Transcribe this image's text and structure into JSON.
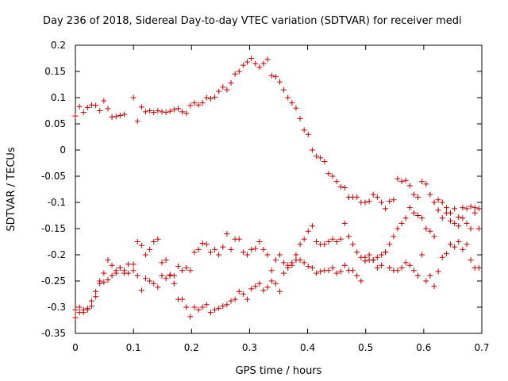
{
  "chart_data": {
    "type": "scatter",
    "title": "Day 236 of 2018, Sidereal Day-to-day VTEC variation (SDTVAR) for receiver medi",
    "xlabel": "GPS time / hours",
    "ylabel": "SDTVAR / TECUs",
    "xlim": [
      0,
      0.7
    ],
    "ylim": [
      -0.35,
      0.2
    ],
    "xticks": [
      "0",
      "0.1",
      "0.2",
      "0.3",
      "0.4",
      "0.5",
      "0.6",
      "0.7"
    ],
    "yticks": [
      "0.2",
      "0.15",
      "0.1",
      "0.05",
      "0",
      "-0.05",
      "-0.1",
      "-0.15",
      "-0.2",
      "-0.25",
      "-0.3",
      "-0.35"
    ],
    "xtick_values": [
      0,
      0.1,
      0.2,
      0.3,
      0.4,
      0.5,
      0.6,
      0.7
    ],
    "ytick_values": [
      0.2,
      0.15,
      0.1,
      0.05,
      0,
      -0.05,
      -0.1,
      -0.15,
      -0.2,
      -0.25,
      -0.3,
      -0.35
    ],
    "marker": "+",
    "color": "#c00000",
    "series": [
      {
        "name": "series-1",
        "points": [
          [
            0.0,
            0.065
          ],
          [
            0.007,
            0.083
          ],
          [
            0.014,
            0.072
          ],
          [
            0.021,
            0.081
          ],
          [
            0.028,
            0.086
          ],
          [
            0.035,
            0.085
          ],
          [
            0.042,
            0.075
          ],
          [
            0.049,
            0.094
          ],
          [
            0.056,
            0.079
          ],
          [
            0.063,
            0.063
          ],
          [
            0.07,
            0.064
          ],
          [
            0.077,
            0.066
          ],
          [
            0.084,
            0.068
          ],
          [
            0.1,
            0.1
          ],
          [
            0.107,
            0.055
          ],
          [
            0.114,
            0.082
          ],
          [
            0.121,
            0.073
          ],
          [
            0.128,
            0.075
          ],
          [
            0.135,
            0.072
          ],
          [
            0.142,
            0.075
          ],
          [
            0.149,
            0.073
          ],
          [
            0.156,
            0.072
          ],
          [
            0.163,
            0.074
          ],
          [
            0.17,
            0.077
          ],
          [
            0.177,
            0.079
          ],
          [
            0.184,
            0.073
          ],
          [
            0.191,
            0.07
          ],
          [
            0.198,
            0.085
          ],
          [
            0.205,
            0.09
          ],
          [
            0.212,
            0.086
          ],
          [
            0.219,
            0.09
          ],
          [
            0.226,
            0.1
          ],
          [
            0.233,
            0.098
          ],
          [
            0.24,
            0.101
          ],
          [
            0.247,
            0.112
          ],
          [
            0.254,
            0.12
          ],
          [
            0.261,
            0.115
          ],
          [
            0.268,
            0.128
          ],
          [
            0.275,
            0.145
          ],
          [
            0.282,
            0.15
          ],
          [
            0.289,
            0.162
          ],
          [
            0.296,
            0.168
          ],
          [
            0.303,
            0.175
          ],
          [
            0.31,
            0.165
          ],
          [
            0.317,
            0.158
          ],
          [
            0.324,
            0.165
          ],
          [
            0.331,
            0.173
          ],
          [
            0.338,
            0.142
          ],
          [
            0.345,
            0.14
          ],
          [
            0.352,
            0.13
          ],
          [
            0.359,
            0.115
          ],
          [
            0.366,
            0.1
          ],
          [
            0.373,
            0.09
          ],
          [
            0.38,
            0.08
          ],
          [
            0.387,
            0.06
          ],
          [
            0.394,
            0.038
          ],
          [
            0.401,
            0.03
          ],
          [
            0.408,
            0.0
          ],
          [
            0.415,
            -0.012
          ],
          [
            0.422,
            -0.015
          ],
          [
            0.429,
            -0.022
          ],
          [
            0.436,
            -0.045
          ],
          [
            0.443,
            -0.05
          ],
          [
            0.45,
            -0.06
          ],
          [
            0.457,
            -0.07
          ],
          [
            0.464,
            -0.072
          ],
          [
            0.471,
            -0.09
          ],
          [
            0.478,
            -0.09
          ],
          [
            0.485,
            -0.09
          ],
          [
            0.492,
            -0.1
          ],
          [
            0.499,
            -0.1
          ],
          [
            0.506,
            -0.098
          ],
          [
            0.513,
            -0.085
          ],
          [
            0.52,
            -0.09
          ],
          [
            0.527,
            -0.1
          ],
          [
            0.534,
            -0.112
          ],
          [
            0.541,
            -0.098
          ],
          [
            0.548,
            -0.095
          ],
          [
            0.555,
            -0.055
          ],
          [
            0.562,
            -0.06
          ],
          [
            0.569,
            -0.058
          ],
          [
            0.576,
            -0.068
          ],
          [
            0.583,
            -0.085
          ],
          [
            0.59,
            -0.09
          ],
          [
            0.597,
            -0.06
          ],
          [
            0.604,
            -0.065
          ],
          [
            0.611,
            -0.085
          ],
          [
            0.618,
            -0.1
          ],
          [
            0.625,
            -0.095
          ],
          [
            0.632,
            -0.1
          ],
          [
            0.639,
            -0.11
          ],
          [
            0.646,
            -0.12
          ],
          [
            0.653,
            -0.112
          ],
          [
            0.66,
            -0.128
          ],
          [
            0.667,
            -0.11
          ],
          [
            0.674,
            -0.112
          ],
          [
            0.681,
            -0.108
          ],
          [
            0.688,
            -0.11
          ],
          [
            0.695,
            -0.112
          ]
        ]
      },
      {
        "name": "series-2",
        "points": [
          [
            0.0,
            -0.305
          ],
          [
            0.007,
            -0.3
          ],
          [
            0.014,
            -0.305
          ],
          [
            0.021,
            -0.302
          ],
          [
            0.028,
            -0.298
          ],
          [
            0.035,
            -0.28
          ],
          [
            0.042,
            -0.255
          ],
          [
            0.049,
            -0.252
          ],
          [
            0.056,
            -0.248
          ],
          [
            0.063,
            -0.24
          ],
          [
            0.07,
            -0.235
          ],
          [
            0.077,
            -0.225
          ],
          [
            0.084,
            -0.23
          ],
          [
            0.091,
            -0.218
          ],
          [
            0.1,
            -0.218
          ],
          [
            0.107,
            -0.175
          ],
          [
            0.114,
            -0.182
          ],
          [
            0.121,
            -0.2
          ],
          [
            0.128,
            -0.19
          ],
          [
            0.135,
            -0.175
          ],
          [
            0.142,
            -0.17
          ],
          [
            0.149,
            -0.215
          ],
          [
            0.156,
            -0.21
          ],
          [
            0.163,
            -0.24
          ],
          [
            0.17,
            -0.24
          ],
          [
            0.177,
            -0.222
          ],
          [
            0.184,
            -0.23
          ],
          [
            0.191,
            -0.225
          ],
          [
            0.198,
            -0.23
          ],
          [
            0.205,
            -0.195
          ],
          [
            0.212,
            -0.19
          ],
          [
            0.219,
            -0.178
          ],
          [
            0.226,
            -0.18
          ],
          [
            0.233,
            -0.195
          ],
          [
            0.24,
            -0.19
          ],
          [
            0.247,
            -0.2
          ],
          [
            0.254,
            -0.185
          ],
          [
            0.261,
            -0.16
          ],
          [
            0.268,
            -0.19
          ],
          [
            0.275,
            -0.17
          ],
          [
            0.282,
            -0.17
          ],
          [
            0.289,
            -0.195
          ],
          [
            0.296,
            -0.2
          ],
          [
            0.303,
            -0.19
          ],
          [
            0.31,
            -0.188
          ],
          [
            0.317,
            -0.175
          ],
          [
            0.324,
            -0.19
          ],
          [
            0.331,
            -0.2
          ],
          [
            0.338,
            -0.23
          ],
          [
            0.345,
            -0.21
          ],
          [
            0.352,
            -0.2
          ],
          [
            0.359,
            -0.215
          ],
          [
            0.366,
            -0.22
          ],
          [
            0.373,
            -0.215
          ],
          [
            0.38,
            -0.2
          ],
          [
            0.387,
            -0.18
          ],
          [
            0.394,
            -0.17
          ],
          [
            0.401,
            -0.155
          ],
          [
            0.408,
            -0.145
          ],
          [
            0.415,
            -0.175
          ],
          [
            0.422,
            -0.18
          ],
          [
            0.429,
            -0.18
          ],
          [
            0.436,
            -0.175
          ],
          [
            0.443,
            -0.17
          ],
          [
            0.45,
            -0.175
          ],
          [
            0.457,
            -0.17
          ],
          [
            0.464,
            -0.14
          ],
          [
            0.471,
            -0.165
          ],
          [
            0.478,
            -0.18
          ],
          [
            0.485,
            -0.195
          ],
          [
            0.492,
            -0.205
          ],
          [
            0.499,
            -0.205
          ],
          [
            0.506,
            -0.21
          ],
          [
            0.513,
            -0.21
          ],
          [
            0.52,
            -0.205
          ],
          [
            0.527,
            -0.2
          ],
          [
            0.534,
            -0.195
          ],
          [
            0.541,
            -0.18
          ],
          [
            0.548,
            -0.165
          ],
          [
            0.555,
            -0.15
          ],
          [
            0.562,
            -0.14
          ],
          [
            0.569,
            -0.13
          ],
          [
            0.576,
            -0.11
          ],
          [
            0.583,
            -0.12
          ],
          [
            0.59,
            -0.125
          ],
          [
            0.597,
            -0.13
          ],
          [
            0.604,
            -0.15
          ],
          [
            0.611,
            -0.155
          ],
          [
            0.618,
            -0.165
          ],
          [
            0.625,
            -0.115
          ],
          [
            0.632,
            -0.13
          ],
          [
            0.639,
            -0.12
          ],
          [
            0.646,
            -0.135
          ],
          [
            0.653,
            -0.14
          ],
          [
            0.66,
            -0.145
          ],
          [
            0.667,
            -0.13
          ],
          [
            0.674,
            -0.14
          ],
          [
            0.681,
            -0.15
          ],
          [
            0.688,
            -0.12
          ],
          [
            0.695,
            -0.15
          ]
        ]
      },
      {
        "name": "series-3",
        "points": [
          [
            0.0,
            -0.32
          ],
          [
            0.007,
            -0.31
          ],
          [
            0.014,
            -0.31
          ],
          [
            0.021,
            -0.305
          ],
          [
            0.028,
            -0.288
          ],
          [
            0.035,
            -0.27
          ],
          [
            0.042,
            -0.25
          ],
          [
            0.049,
            -0.235
          ],
          [
            0.056,
            -0.21
          ],
          [
            0.063,
            -0.22
          ],
          [
            0.07,
            -0.23
          ],
          [
            0.077,
            -0.225
          ],
          [
            0.084,
            -0.235
          ],
          [
            0.091,
            -0.235
          ],
          [
            0.1,
            -0.23
          ],
          [
            0.107,
            -0.24
          ],
          [
            0.114,
            -0.268
          ],
          [
            0.121,
            -0.245
          ],
          [
            0.128,
            -0.25
          ],
          [
            0.135,
            -0.255
          ],
          [
            0.142,
            -0.262
          ],
          [
            0.149,
            -0.24
          ],
          [
            0.156,
            -0.245
          ],
          [
            0.163,
            -0.238
          ],
          [
            0.17,
            -0.255
          ],
          [
            0.177,
            -0.285
          ],
          [
            0.184,
            -0.285
          ],
          [
            0.191,
            -0.3
          ],
          [
            0.198,
            -0.318
          ],
          [
            0.205,
            -0.3
          ],
          [
            0.212,
            -0.305
          ],
          [
            0.219,
            -0.3
          ],
          [
            0.226,
            -0.295
          ],
          [
            0.233,
            -0.31
          ],
          [
            0.24,
            -0.305
          ],
          [
            0.247,
            -0.302
          ],
          [
            0.254,
            -0.298
          ],
          [
            0.261,
            -0.295
          ],
          [
            0.268,
            -0.288
          ],
          [
            0.275,
            -0.285
          ],
          [
            0.282,
            -0.27
          ],
          [
            0.289,
            -0.275
          ],
          [
            0.296,
            -0.285
          ],
          [
            0.303,
            -0.265
          ],
          [
            0.31,
            -0.26
          ],
          [
            0.317,
            -0.255
          ],
          [
            0.324,
            -0.268
          ],
          [
            0.331,
            -0.262
          ],
          [
            0.338,
            -0.25
          ],
          [
            0.345,
            -0.255
          ],
          [
            0.352,
            -0.27
          ],
          [
            0.359,
            -0.235
          ],
          [
            0.366,
            -0.225
          ],
          [
            0.373,
            -0.22
          ],
          [
            0.38,
            -0.21
          ],
          [
            0.387,
            -0.21
          ],
          [
            0.394,
            -0.215
          ],
          [
            0.401,
            -0.222
          ],
          [
            0.408,
            -0.225
          ],
          [
            0.415,
            -0.235
          ],
          [
            0.422,
            -0.232
          ],
          [
            0.429,
            -0.23
          ],
          [
            0.436,
            -0.23
          ],
          [
            0.443,
            -0.225
          ],
          [
            0.45,
            -0.235
          ],
          [
            0.457,
            -0.232
          ],
          [
            0.464,
            -0.22
          ],
          [
            0.471,
            -0.23
          ],
          [
            0.478,
            -0.23
          ],
          [
            0.485,
            -0.24
          ],
          [
            0.492,
            -0.25
          ],
          [
            0.499,
            -0.212
          ],
          [
            0.506,
            -0.2
          ],
          [
            0.513,
            -0.21
          ],
          [
            0.52,
            -0.225
          ],
          [
            0.527,
            -0.22
          ],
          [
            0.534,
            -0.195
          ],
          [
            0.541,
            -0.225
          ],
          [
            0.548,
            -0.23
          ],
          [
            0.555,
            -0.23
          ],
          [
            0.562,
            -0.225
          ],
          [
            0.569,
            -0.215
          ],
          [
            0.576,
            -0.22
          ],
          [
            0.583,
            -0.23
          ],
          [
            0.59,
            -0.24
          ],
          [
            0.597,
            -0.2
          ],
          [
            0.604,
            -0.25
          ],
          [
            0.611,
            -0.24
          ],
          [
            0.618,
            -0.26
          ],
          [
            0.625,
            -0.232
          ],
          [
            0.632,
            -0.205
          ],
          [
            0.639,
            -0.198
          ],
          [
            0.646,
            -0.18
          ],
          [
            0.653,
            -0.185
          ],
          [
            0.66,
            -0.175
          ],
          [
            0.667,
            -0.19
          ],
          [
            0.674,
            -0.18
          ],
          [
            0.681,
            -0.21
          ],
          [
            0.688,
            -0.225
          ],
          [
            0.695,
            -0.225
          ]
        ]
      }
    ]
  }
}
